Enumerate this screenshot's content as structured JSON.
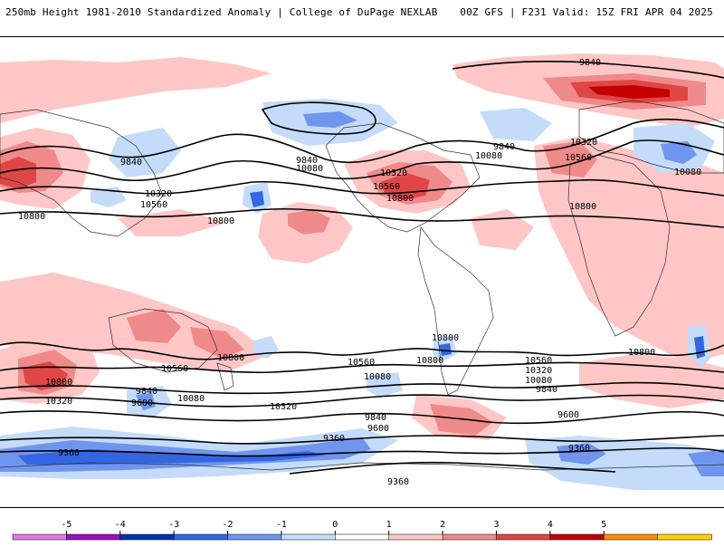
{
  "header": {
    "title": "250mb Height 1981-2010 Standardized Anomaly | College of DuPage NEXLAB",
    "run_info": "00Z GFS | F231 Valid: 15Z FRI APR 04 2025"
  },
  "colorbar": {
    "ticks": [
      "-5",
      "-4",
      "-3",
      "-2",
      "-1",
      "0",
      "1",
      "2",
      "3",
      "4",
      "5"
    ],
    "colors": [
      "#e07be0",
      "#9a10c0",
      "#0033b0",
      "#3366e0",
      "#6f95ef",
      "#c4dcfa",
      "#ffffff",
      "#ffc6c6",
      "#f08a8a",
      "#e04646",
      "#c40000",
      "#ff8c00",
      "#ffd000"
    ]
  },
  "map": {
    "contour_labels": [
      {
        "text": "9840"
      },
      {
        "text": "9840"
      },
      {
        "text": "9840"
      },
      {
        "text": "9840"
      },
      {
        "text": "10080"
      },
      {
        "text": "10080"
      },
      {
        "text": "10080"
      },
      {
        "text": "10320"
      },
      {
        "text": "10320"
      },
      {
        "text": "10320"
      },
      {
        "text": "10560"
      },
      {
        "text": "10560"
      },
      {
        "text": "10560"
      },
      {
        "text": "10800"
      },
      {
        "text": "10800"
      },
      {
        "text": "10800"
      },
      {
        "text": "10800"
      },
      {
        "text": "10800"
      },
      {
        "text": "10800"
      },
      {
        "text": "10800"
      },
      {
        "text": "10800"
      },
      {
        "text": "10320"
      },
      {
        "text": "10560"
      },
      {
        "text": "10800"
      },
      {
        "text": "10560"
      },
      {
        "text": "10080"
      },
      {
        "text": "10320"
      },
      {
        "text": "10080"
      },
      {
        "text": "9600"
      },
      {
        "text": "9840"
      },
      {
        "text": "10560"
      },
      {
        "text": "10320"
      },
      {
        "text": "10080"
      },
      {
        "text": "9840"
      },
      {
        "text": "9840"
      },
      {
        "text": "9600"
      },
      {
        "text": "9600"
      },
      {
        "text": "9360"
      },
      {
        "text": "9360"
      },
      {
        "text": "9360"
      },
      {
        "text": "9360"
      }
    ]
  }
}
